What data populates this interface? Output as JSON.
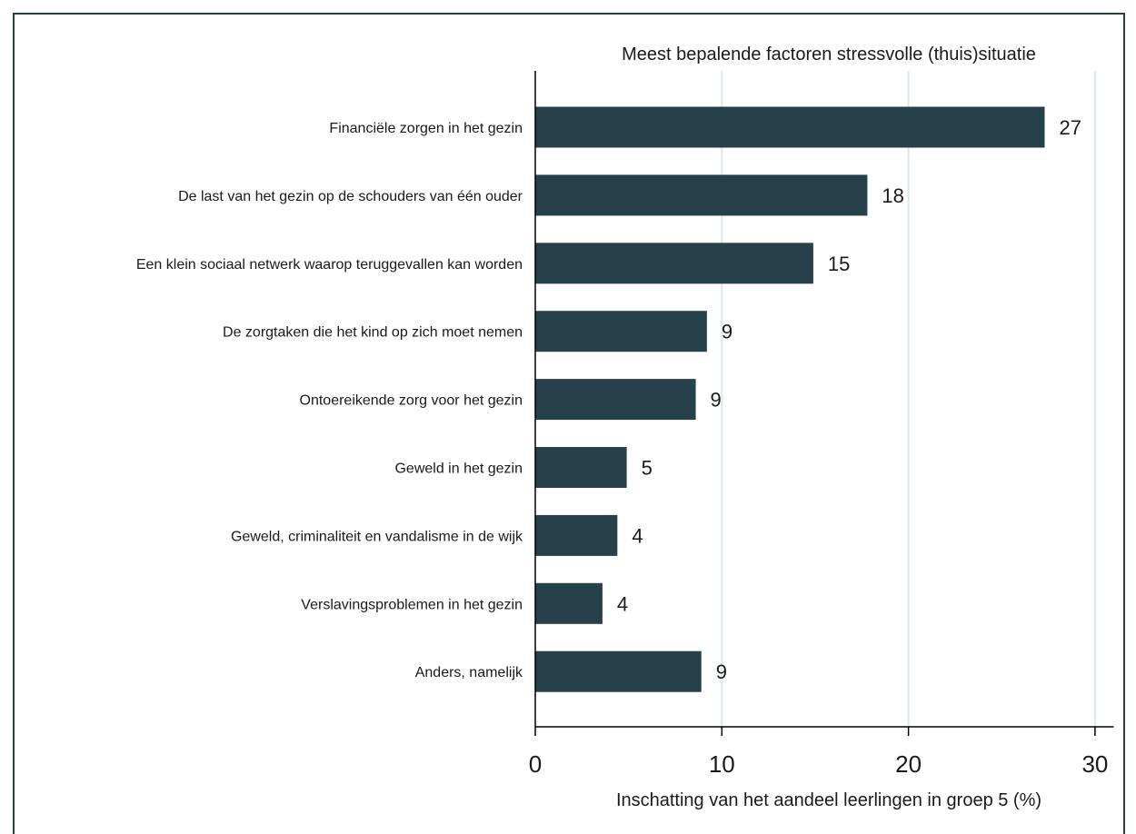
{
  "chart_data": {
    "type": "bar",
    "orientation": "horizontal",
    "title": "Meest bepalende factoren stressvolle (thuis)situatie",
    "xlabel": "Inschatting van het aandeel leerlingen in groep 5 (%)",
    "categories": [
      "Financiële zorgen in het gezin",
      "De last van het gezin op de schouders van één ouder",
      "Een klein sociaal netwerk waarop teruggevallen kan worden",
      "De zorgtaken die het kind op zich moet nemen",
      "Ontoereikende zorg voor het gezin",
      "Geweld in het gezin",
      "Geweld, criminaliteit en vandalisme in de wijk",
      "Verslavingsproblemen in het gezin",
      "Anders, namelijk"
    ],
    "values": [
      27.3,
      17.8,
      14.9,
      9.2,
      8.6,
      4.9,
      4.4,
      3.6,
      8.9
    ],
    "value_labels": [
      "27",
      "18",
      "15",
      "9",
      "9",
      "5",
      "4",
      "4",
      "9"
    ],
    "xlim": [
      0,
      31
    ],
    "xticks": [
      0,
      10,
      20,
      30
    ],
    "xtick_labels": [
      "0",
      "10",
      "20",
      "30"
    ],
    "grid": true,
    "bar_color": "#26414a",
    "grid_color": "#dce9ea"
  }
}
